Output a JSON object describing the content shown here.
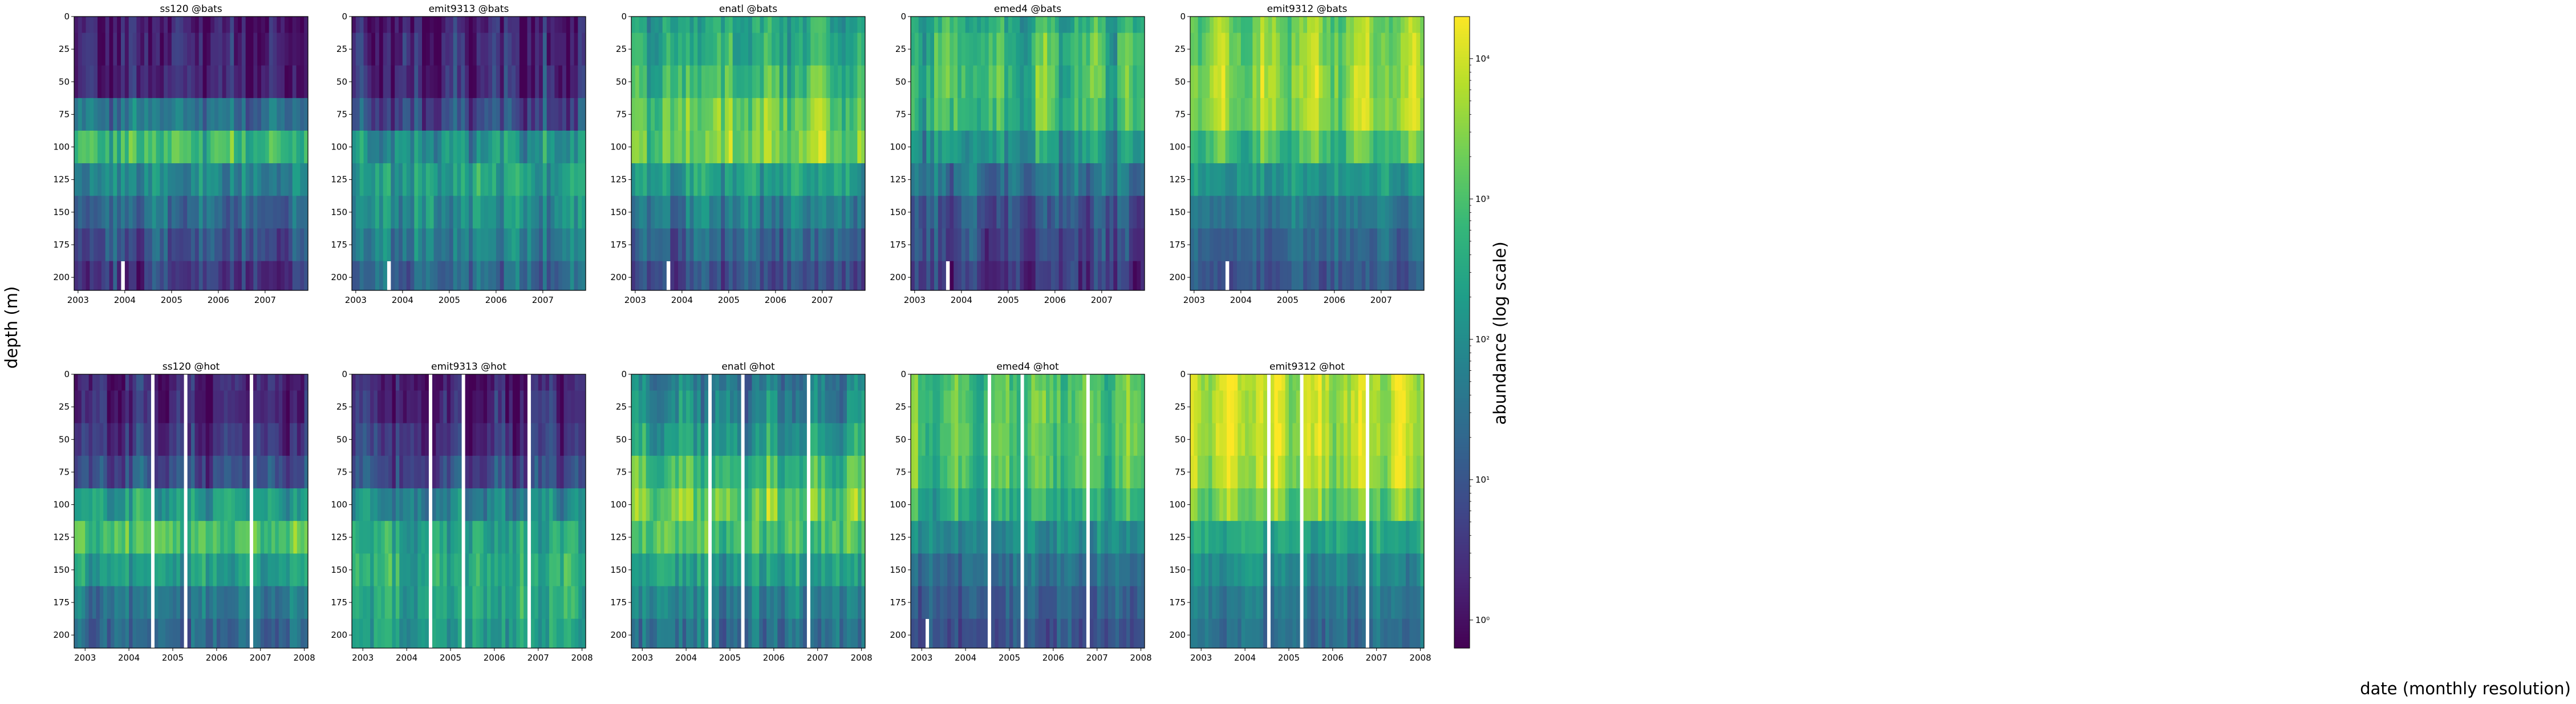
{
  "figure": {
    "ylabel": "depth (m)",
    "xlabel": "date (monthly resolution)",
    "colorbar_label": "abundance (log scale)"
  },
  "chart_data": [
    {
      "type": "heatmap",
      "title": "ss120 @bats",
      "station": "bats",
      "ecotype": "ss120",
      "x_ticks": [
        "2003",
        "2004",
        "2005",
        "2006",
        "2007"
      ],
      "x_range": [
        "2002-12",
        "2007-11"
      ],
      "y_ticks": [
        0,
        25,
        50,
        75,
        100,
        125,
        150,
        175,
        200
      ],
      "y_range": [
        0,
        210
      ],
      "color_scale": "log",
      "colormap": "viridis",
      "profile_log10": [
        0.2,
        0.3,
        0.35,
        1.6,
        2.9,
        1.9,
        1.4,
        1.0,
        0.6
      ],
      "variability": 0.45,
      "missing": [
        {
          "date": "2003-12",
          "depth_from": 190
        }
      ]
    },
    {
      "type": "heatmap",
      "title": "emit9313 @bats",
      "station": "bats",
      "ecotype": "emit9313",
      "x_ticks": [
        "2003",
        "2004",
        "2005",
        "2006",
        "2007"
      ],
      "x_range": [
        "2002-12",
        "2007-11"
      ],
      "y_ticks": [
        0,
        25,
        50,
        75,
        100,
        125,
        150,
        175,
        200
      ],
      "y_range": [
        0,
        210
      ],
      "color_scale": "log",
      "colormap": "viridis",
      "profile_log10": [
        0.1,
        0.2,
        0.3,
        0.8,
        2.0,
        2.3,
        2.0,
        1.7,
        1.3
      ],
      "variability": 0.5,
      "missing": [
        {
          "date": "2003-09",
          "depth_from": 185
        }
      ]
    },
    {
      "type": "heatmap",
      "title": "enatl @bats",
      "station": "bats",
      "ecotype": "enatl",
      "x_ticks": [
        "2003",
        "2004",
        "2005",
        "2006",
        "2007"
      ],
      "x_range": [
        "2002-12",
        "2007-11"
      ],
      "y_ticks": [
        0,
        25,
        50,
        75,
        100,
        125,
        150,
        175,
        200
      ],
      "y_range": [
        0,
        210
      ],
      "color_scale": "log",
      "colormap": "viridis",
      "profile_log10": [
        2.4,
        2.5,
        2.8,
        3.2,
        3.3,
        2.3,
        1.7,
        1.2,
        0.8
      ],
      "variability": 0.45,
      "missing": [
        {
          "date": "2003-09",
          "depth_from": 185
        }
      ]
    },
    {
      "type": "heatmap",
      "title": "emed4 @bats",
      "station": "bats",
      "ecotype": "emed4",
      "x_ticks": [
        "2003",
        "2004",
        "2005",
        "2006",
        "2007"
      ],
      "x_range": [
        "2002-12",
        "2007-11"
      ],
      "y_ticks": [
        0,
        25,
        50,
        75,
        100,
        125,
        150,
        175,
        200
      ],
      "y_range": [
        0,
        210
      ],
      "color_scale": "log",
      "colormap": "viridis",
      "profile_log10": [
        2.6,
        2.8,
        2.9,
        2.8,
        2.2,
        1.5,
        1.0,
        0.8,
        0.6
      ],
      "variability": 0.5,
      "missing": [
        {
          "date": "2003-09",
          "depth_from": 185
        }
      ]
    },
    {
      "type": "heatmap",
      "title": "emit9312 @bats",
      "station": "bats",
      "ecotype": "emit9312",
      "x_ticks": [
        "2003",
        "2004",
        "2005",
        "2006",
        "2007"
      ],
      "x_range": [
        "2002-12",
        "2007-11"
      ],
      "y_ticks": [
        0,
        25,
        50,
        75,
        100,
        125,
        150,
        175,
        200
      ],
      "y_range": [
        0,
        210
      ],
      "color_scale": "log",
      "colormap": "viridis",
      "profile_log10": [
        3.4,
        3.5,
        3.6,
        3.6,
        3.0,
        2.2,
        1.6,
        1.3,
        1.1
      ],
      "variability": 0.35,
      "missing": [
        {
          "date": "2003-09",
          "depth_from": 185
        }
      ]
    },
    {
      "type": "heatmap",
      "title": "ss120 @hot",
      "station": "hot",
      "ecotype": "ss120",
      "x_ticks": [
        "2003",
        "2004",
        "2005",
        "2006",
        "2007",
        "2008"
      ],
      "x_range": [
        "2002-10",
        "2008-01"
      ],
      "y_ticks": [
        0,
        25,
        50,
        75,
        100,
        125,
        150,
        175,
        200
      ],
      "y_range": [
        0,
        210
      ],
      "color_scale": "log",
      "colormap": "viridis",
      "profile_log10": [
        0.3,
        0.3,
        0.5,
        0.9,
        2.3,
        3.0,
        2.3,
        1.6,
        1.3
      ],
      "variability": 0.45,
      "missing": [
        {
          "date": "2004-07"
        },
        {
          "date": "2005-04"
        },
        {
          "date": "2006-10"
        }
      ]
    },
    {
      "type": "heatmap",
      "title": "emit9313 @hot",
      "station": "hot",
      "ecotype": "emit9313",
      "x_ticks": [
        "2003",
        "2004",
        "2005",
        "2006",
        "2007",
        "2008"
      ],
      "x_range": [
        "2002-10",
        "2008-01"
      ],
      "y_ticks": [
        0,
        25,
        50,
        75,
        100,
        125,
        150,
        175,
        200
      ],
      "y_range": [
        0,
        210
      ],
      "color_scale": "log",
      "colormap": "viridis",
      "profile_log10": [
        0.2,
        0.3,
        0.5,
        0.8,
        1.8,
        2.4,
        2.6,
        2.5,
        2.3
      ],
      "variability": 0.45,
      "missing": [
        {
          "date": "2004-07"
        },
        {
          "date": "2005-04"
        },
        {
          "date": "2006-10"
        }
      ]
    },
    {
      "type": "heatmap",
      "title": "enatl @hot",
      "station": "hot",
      "ecotype": "enatl",
      "x_ticks": [
        "2003",
        "2004",
        "2005",
        "2006",
        "2007",
        "2008"
      ],
      "x_range": [
        "2002-10",
        "2008-01"
      ],
      "y_ticks": [
        0,
        25,
        50,
        75,
        100,
        125,
        150,
        175,
        200
      ],
      "y_range": [
        0,
        210
      ],
      "color_scale": "log",
      "colormap": "viridis",
      "profile_log10": [
        1.6,
        1.8,
        2.2,
        2.8,
        3.2,
        3.0,
        2.3,
        1.8,
        1.5
      ],
      "variability": 0.45,
      "missing": [
        {
          "date": "2004-07"
        },
        {
          "date": "2005-04"
        },
        {
          "date": "2006-10"
        }
      ]
    },
    {
      "type": "heatmap",
      "title": "emed4 @hot",
      "station": "hot",
      "ecotype": "emed4",
      "x_ticks": [
        "2003",
        "2004",
        "2005",
        "2006",
        "2007",
        "2008"
      ],
      "x_range": [
        "2002-10",
        "2008-01"
      ],
      "y_ticks": [
        0,
        25,
        50,
        75,
        100,
        125,
        150,
        175,
        200
      ],
      "y_range": [
        0,
        210
      ],
      "color_scale": "log",
      "colormap": "viridis",
      "profile_log10": [
        3.0,
        3.1,
        3.1,
        3.0,
        2.6,
        2.0,
        1.5,
        1.2,
        1.0
      ],
      "variability": 0.35,
      "missing": [
        {
          "date": "2004-07"
        },
        {
          "date": "2005-04"
        },
        {
          "date": "2006-10"
        },
        {
          "date": "2003-02",
          "depth_from": 185
        }
      ]
    },
    {
      "type": "heatmap",
      "title": "emit9312 @hot",
      "station": "hot",
      "ecotype": "emit9312",
      "x_ticks": [
        "2003",
        "2004",
        "2005",
        "2006",
        "2007",
        "2008"
      ],
      "x_range": [
        "2002-10",
        "2008-01"
      ],
      "y_ticks": [
        0,
        25,
        50,
        75,
        100,
        125,
        150,
        175,
        200
      ],
      "y_range": [
        0,
        210
      ],
      "color_scale": "log",
      "colormap": "viridis",
      "profile_log10": [
        3.8,
        3.8,
        3.8,
        3.7,
        3.3,
        2.4,
        1.9,
        1.6,
        1.4
      ],
      "variability": 0.3,
      "missing": [
        {
          "date": "2004-07"
        },
        {
          "date": "2005-04"
        },
        {
          "date": "2006-10"
        }
      ]
    }
  ],
  "colorbar": {
    "scale": "log",
    "colormap": "viridis",
    "range_log10": [
      -0.2,
      4.3
    ],
    "ticks": [
      {
        "value_log10": 0,
        "label": "10⁰"
      },
      {
        "value_log10": 1,
        "label": "10¹"
      },
      {
        "value_log10": 2,
        "label": "10²"
      },
      {
        "value_log10": 3,
        "label": "10³"
      },
      {
        "value_log10": 4,
        "label": "10⁴"
      }
    ]
  },
  "colors": {
    "viridis": [
      "#440154",
      "#482878",
      "#3e4989",
      "#31688e",
      "#26828e",
      "#1f9e89",
      "#35b779",
      "#6ece58",
      "#b5de2b",
      "#fde725"
    ]
  }
}
